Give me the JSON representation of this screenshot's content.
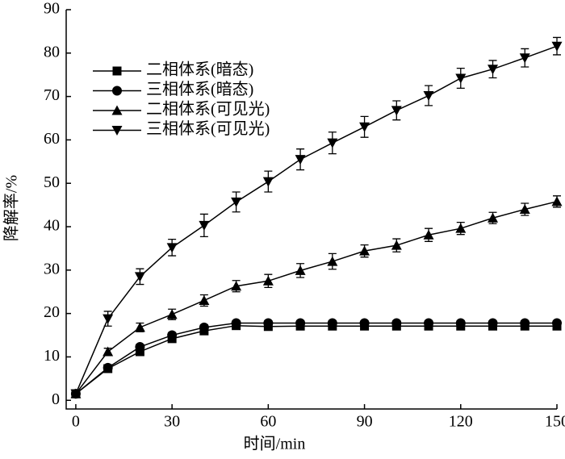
{
  "chart_data": {
    "type": "line",
    "x_label": "时间/min",
    "y_label": "降解率/%",
    "x": [
      0,
      10,
      20,
      30,
      40,
      50,
      60,
      70,
      80,
      90,
      100,
      110,
      120,
      130,
      140,
      150
    ],
    "series": [
      {
        "name": "二相体系(暗态)",
        "color": "#000000",
        "marker": "square",
        "values": [
          1.5,
          7.3,
          11.2,
          14.2,
          16.0,
          17.2,
          17.0,
          17.1,
          17.1,
          17.1,
          17.1,
          17.1,
          17.1,
          17.1,
          17.1,
          17.1
        ],
        "errors": [
          0.5,
          0.5,
          0.6,
          0.6,
          0.6,
          0.5,
          0.5,
          0.5,
          0.5,
          0.5,
          0.5,
          0.5,
          0.5,
          0.5,
          0.5,
          0.5
        ]
      },
      {
        "name": "三相体系(暗态)",
        "color": "#000000",
        "marker": "circle",
        "values": [
          1.5,
          7.5,
          12.3,
          15.0,
          16.8,
          17.8,
          17.8,
          17.8,
          17.8,
          17.8,
          17.8,
          17.8,
          17.8,
          17.8,
          17.8,
          17.8
        ],
        "errors": [
          0.5,
          0.5,
          0.6,
          0.6,
          0.6,
          0.5,
          0.5,
          0.5,
          0.5,
          0.5,
          0.5,
          0.5,
          0.5,
          0.5,
          0.5,
          0.5
        ]
      },
      {
        "name": "二相体系(可见光)",
        "color": "#000000",
        "marker": "triangle-up",
        "values": [
          1.5,
          11.2,
          16.8,
          19.8,
          23.0,
          26.3,
          27.5,
          29.9,
          32.0,
          34.4,
          35.7,
          38.1,
          39.6,
          42.0,
          44.0,
          45.8
        ],
        "errors": [
          0.5,
          0.8,
          1.0,
          1.2,
          1.3,
          1.3,
          1.5,
          1.6,
          1.8,
          1.4,
          1.5,
          1.5,
          1.4,
          1.3,
          1.4,
          1.3
        ]
      },
      {
        "name": "三相体系(可见光)",
        "color": "#000000",
        "marker": "triangle-down",
        "values": [
          1.5,
          18.8,
          28.5,
          35.2,
          40.3,
          45.7,
          50.4,
          55.5,
          59.3,
          63.0,
          66.8,
          70.2,
          74.2,
          76.3,
          78.9,
          81.6
        ],
        "errors": [
          0.5,
          1.7,
          1.8,
          1.9,
          2.6,
          2.3,
          2.4,
          2.4,
          2.5,
          2.4,
          2.2,
          2.3,
          2.3,
          2.0,
          2.1,
          2.0
        ]
      }
    ],
    "xlim": [
      -3,
      150
    ],
    "xticks": [
      0,
      30,
      60,
      90,
      120,
      150
    ],
    "ylim": [
      -2,
      90
    ],
    "yticks": [
      0,
      10,
      20,
      30,
      40,
      50,
      60,
      70,
      80,
      90
    ],
    "legend": "upper left"
  }
}
